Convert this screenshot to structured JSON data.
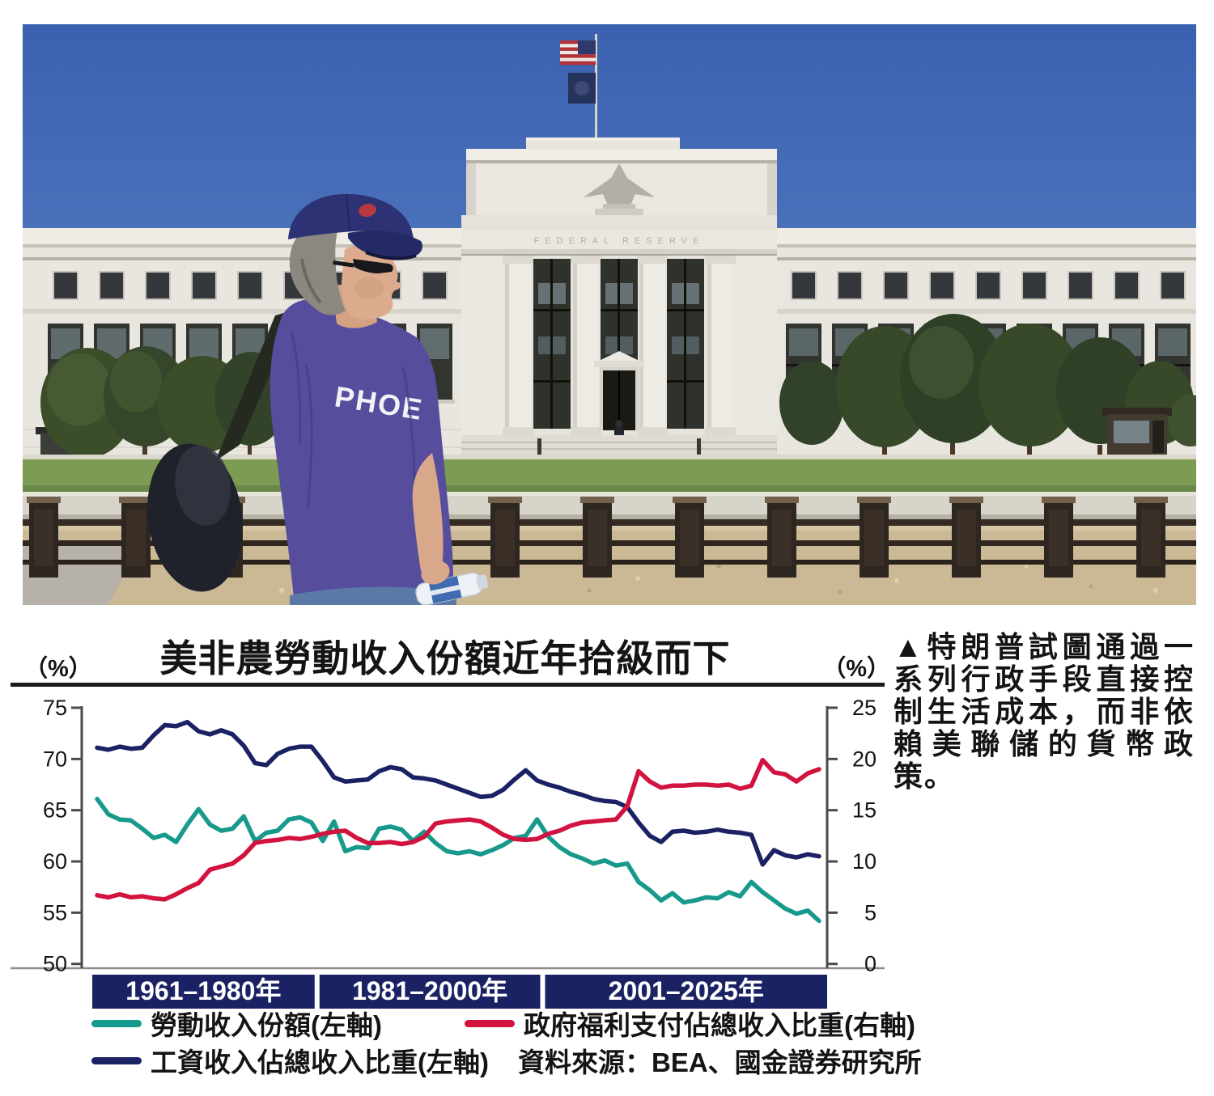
{
  "caption": {
    "text": "▲特朗普試圖通過一系列行政手段直接控制生活成本，而非依賴美聯儲的貨幣政策。"
  },
  "photo": {
    "building_inscription": "FEDERAL RESERVE",
    "shirt_text": "PHOE"
  },
  "colors": {
    "period_band": "#1b2264",
    "axis": "#4a4a4a",
    "baseline": "#8c8c8c",
    "tick_text": "#161314",
    "band_text": "#ffffff"
  },
  "chart_data": {
    "type": "line",
    "title": "美非農勞動收入份額近年拾級而下",
    "left_axis": {
      "unit": "（%）",
      "ticks": [
        75,
        70,
        65,
        60,
        55,
        50
      ],
      "range": [
        50,
        75
      ]
    },
    "right_axis": {
      "unit": "（%）",
      "ticks": [
        25,
        20,
        15,
        10,
        5,
        0
      ],
      "range": [
        0,
        25
      ]
    },
    "x": {
      "start_year": 1961,
      "end_year": 2025,
      "period_labels": [
        "1961–1980年",
        "1981–2000年",
        "2001–2025年"
      ],
      "period_ranges": [
        [
          1961,
          1980
        ],
        [
          1981,
          2000
        ],
        [
          2001,
          2025
        ]
      ]
    },
    "series": [
      {
        "name": "勞動收入份額(左軸)",
        "axis": "left",
        "color": "#17998c",
        "values": [
          66.1,
          64.6,
          64.1,
          64.0,
          63.2,
          62.3,
          62.6,
          61.9,
          63.6,
          65.1,
          63.6,
          63.0,
          63.2,
          64.4,
          62.0,
          62.8,
          63.0,
          64.1,
          64.3,
          63.8,
          62.0,
          63.9,
          61.0,
          61.4,
          61.3,
          63.2,
          63.4,
          63.1,
          62.0,
          62.9,
          61.8,
          61.0,
          60.8,
          61.0,
          60.7,
          61.1,
          61.6,
          62.3,
          62.5,
          64.1,
          62.4,
          61.4,
          60.7,
          60.3,
          59.8,
          60.1,
          59.6,
          59.8,
          58.0,
          57.2,
          56.2,
          56.9,
          56.0,
          56.2,
          56.5,
          56.4,
          57.0,
          56.6,
          58.0,
          57.0,
          56.2,
          55.4,
          54.9,
          55.2,
          54.2
        ]
      },
      {
        "name": "工資收入佔總收入比重(左軸)",
        "axis": "left",
        "color": "#1b2264",
        "values": [
          71.1,
          70.9,
          71.2,
          71.0,
          71.1,
          72.3,
          73.3,
          73.2,
          73.6,
          72.7,
          72.4,
          72.8,
          72.4,
          71.3,
          69.6,
          69.4,
          70.5,
          71.0,
          71.2,
          71.2,
          69.8,
          68.2,
          67.8,
          67.9,
          68.0,
          68.8,
          69.2,
          69.0,
          68.2,
          68.1,
          67.9,
          67.5,
          67.1,
          66.7,
          66.3,
          66.4,
          67.0,
          68.0,
          68.9,
          67.9,
          67.5,
          67.2,
          66.8,
          66.5,
          66.1,
          65.9,
          65.8,
          65.3,
          63.8,
          62.5,
          61.9,
          62.9,
          63.0,
          62.8,
          62.9,
          63.1,
          62.9,
          62.8,
          62.6,
          59.7,
          61.1,
          60.6,
          60.4,
          60.7,
          60.5
        ]
      },
      {
        "name": "政府福利支付佔總收入比重(右軸)",
        "axis": "right",
        "color": "#d2123f",
        "values": [
          6.7,
          6.5,
          6.8,
          6.5,
          6.6,
          6.4,
          6.3,
          6.8,
          7.4,
          7.9,
          9.2,
          9.5,
          9.8,
          10.6,
          11.8,
          12.0,
          12.1,
          12.3,
          12.2,
          12.4,
          12.7,
          12.9,
          13.0,
          12.3,
          11.8,
          11.8,
          11.9,
          11.7,
          11.9,
          12.4,
          13.7,
          13.9,
          14.0,
          14.1,
          13.9,
          13.3,
          12.6,
          12.2,
          12.1,
          12.2,
          12.7,
          13.0,
          13.5,
          13.8,
          13.9,
          14.0,
          14.1,
          15.4,
          18.8,
          17.8,
          17.2,
          17.4,
          17.4,
          17.5,
          17.5,
          17.4,
          17.5,
          17.1,
          17.4,
          19.9,
          18.7,
          18.5,
          17.8,
          18.6,
          19.0
        ]
      }
    ],
    "source": "資料來源：BEA、國金證券研究所",
    "legend_position": "bottom",
    "grid": false
  }
}
